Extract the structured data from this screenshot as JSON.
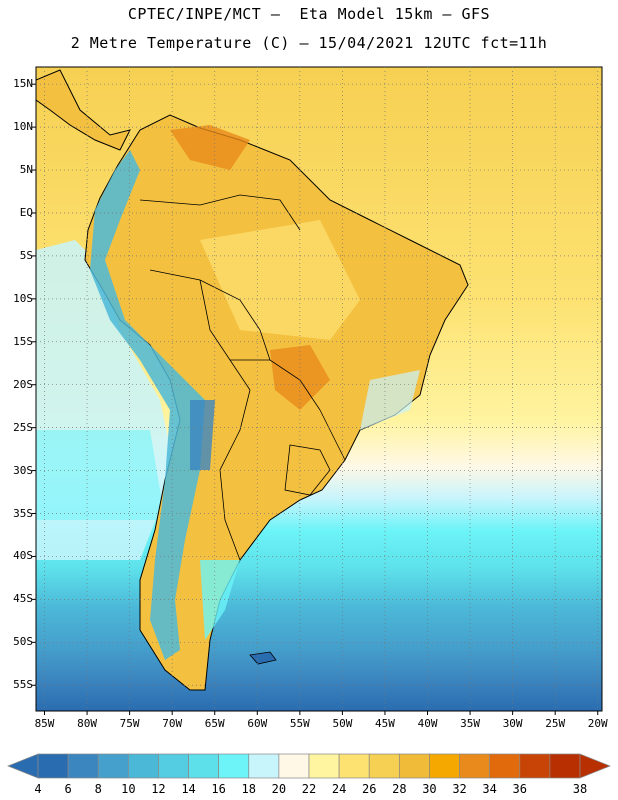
{
  "header": {
    "line1": "CPTEC/INPE/MCT –  Eta Model 15km – GFS",
    "line2": "2 Metre Temperature (C) – 15/04/2021 12UTC fct=11h"
  },
  "map": {
    "lat_labels": [
      "15N",
      "10N",
      "5N",
      "EQ",
      "5S",
      "10S",
      "15S",
      "20S",
      "25S",
      "30S",
      "35S",
      "40S",
      "45S",
      "50S",
      "55S"
    ],
    "lat_values": [
      15,
      10,
      5,
      0,
      -5,
      -10,
      -15,
      -20,
      -25,
      -30,
      -35,
      -40,
      -45,
      -50,
      -55
    ],
    "lon_labels": [
      "85W",
      "80W",
      "75W",
      "70W",
      "65W",
      "60W",
      "55W",
      "50W",
      "45W",
      "40W",
      "35W",
      "30W",
      "25W",
      "20W"
    ],
    "lon_values": [
      -85,
      -80,
      -75,
      -70,
      -65,
      -60,
      -55,
      -50,
      -45,
      -40,
      -35,
      -30,
      -25,
      -20
    ],
    "lon_range": [
      -86,
      -19.5
    ],
    "lat_range": [
      -58,
      17
    ]
  },
  "colorbar": {
    "labels": [
      "4",
      "6",
      "8",
      "10",
      "12",
      "14",
      "16",
      "18",
      "20",
      "22",
      "24",
      "26",
      "28",
      "30",
      "32",
      "34",
      "36",
      "38"
    ],
    "colors": [
      "#2a6cb0",
      "#3c86c0",
      "#45a0cc",
      "#4cb8d8",
      "#54cde2",
      "#5de0ea",
      "#6cf4f8",
      "#c8f4fc",
      "#fff8e6",
      "#fff4a0",
      "#fde272",
      "#f6d052",
      "#efbb38",
      "#f4a800",
      "#e88a1c",
      "#e06a0c",
      "#c84406",
      "#b83002"
    ]
  }
}
